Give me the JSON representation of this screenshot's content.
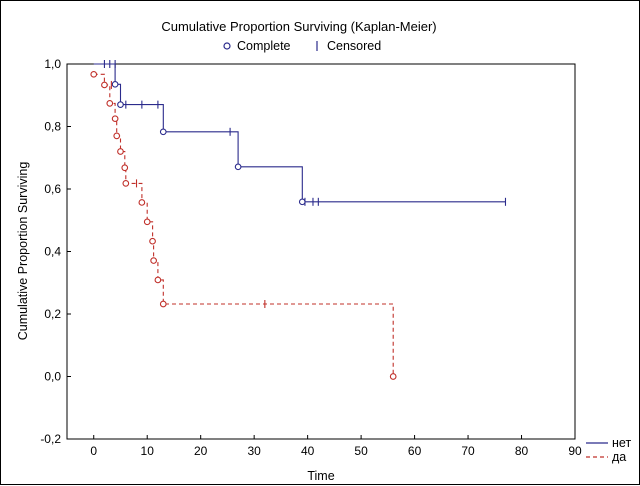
{
  "colors": {
    "blue": "#2B2B8C",
    "red": "#C0302A",
    "grid": "#000000"
  },
  "chart_data": {
    "type": "line",
    "title": "Cumulative Proportion Surviving (Kaplan-Meier)",
    "legend_top": {
      "complete": "Complete",
      "censored": "Censored"
    },
    "xlabel": "Time",
    "ylabel": "Cumulative Proportion Surviving",
    "xlim": [
      -5,
      90
    ],
    "ylim": [
      -0.2,
      1.0
    ],
    "x_ticks": [
      "0",
      "10",
      "20",
      "30",
      "40",
      "50",
      "60",
      "70",
      "80",
      "90"
    ],
    "y_ticks": [
      "-0,2",
      "0,0",
      "0,2",
      "0,4",
      "0,6",
      "0,8",
      "1,0"
    ],
    "grid": false,
    "legend_position": "bottom-right, outside plot",
    "series": [
      {
        "name": "нет",
        "color": "#2B2B8C",
        "line_style": "solid",
        "steps": [
          [
            0,
            1.0
          ],
          [
            4,
            1.0
          ],
          [
            4,
            0.935
          ],
          [
            5,
            0.935
          ],
          [
            5,
            0.87
          ],
          [
            13,
            0.87
          ],
          [
            13,
            0.783
          ],
          [
            27,
            0.783
          ],
          [
            27,
            0.671
          ],
          [
            39,
            0.671
          ],
          [
            39,
            0.559
          ],
          [
            77,
            0.559
          ]
        ],
        "events": [
          [
            4,
            0.935
          ],
          [
            5,
            0.87
          ],
          [
            13,
            0.783
          ],
          [
            27,
            0.671
          ],
          [
            39,
            0.559
          ]
        ],
        "censored": [
          [
            2,
            1.0
          ],
          [
            3,
            1.0
          ],
          [
            4,
            1.0
          ],
          [
            6,
            0.87
          ],
          [
            9,
            0.87
          ],
          [
            12,
            0.87
          ],
          [
            25.5,
            0.783
          ],
          [
            39.5,
            0.559
          ],
          [
            41,
            0.559
          ],
          [
            42,
            0.559
          ],
          [
            77,
            0.559
          ]
        ]
      },
      {
        "name": "да",
        "color": "#C0302A",
        "line_style": "dashed",
        "steps": [
          [
            0,
            0.967
          ],
          [
            2,
            0.967
          ],
          [
            2,
            0.933
          ],
          [
            3,
            0.933
          ],
          [
            3,
            0.874
          ],
          [
            4,
            0.874
          ],
          [
            4,
            0.825
          ],
          [
            4.3,
            0.825
          ],
          [
            4.3,
            0.77
          ],
          [
            5,
            0.77
          ],
          [
            5,
            0.72
          ],
          [
            5.8,
            0.72
          ],
          [
            5.8,
            0.668
          ],
          [
            6,
            0.668
          ],
          [
            6,
            0.618
          ],
          [
            9,
            0.618
          ],
          [
            9,
            0.557
          ],
          [
            10,
            0.557
          ],
          [
            10,
            0.495
          ],
          [
            11,
            0.495
          ],
          [
            11,
            0.433
          ],
          [
            11.2,
            0.433
          ],
          [
            11.2,
            0.371
          ],
          [
            12,
            0.371
          ],
          [
            12,
            0.309
          ],
          [
            13,
            0.309
          ],
          [
            13,
            0.232
          ],
          [
            56,
            0.232
          ],
          [
            56,
            0.0
          ]
        ],
        "events": [
          [
            0,
            0.967
          ],
          [
            2,
            0.933
          ],
          [
            3,
            0.874
          ],
          [
            4,
            0.825
          ],
          [
            4.3,
            0.77
          ],
          [
            5,
            0.72
          ],
          [
            5.8,
            0.668
          ],
          [
            6,
            0.618
          ],
          [
            9,
            0.557
          ],
          [
            10,
            0.495
          ],
          [
            11,
            0.433
          ],
          [
            11.2,
            0.371
          ],
          [
            12,
            0.309
          ],
          [
            13,
            0.232
          ],
          [
            56,
            0.0
          ]
        ],
        "censored": [
          [
            3.3,
            0.933
          ],
          [
            8,
            0.618
          ],
          [
            32,
            0.232
          ]
        ]
      }
    ]
  }
}
